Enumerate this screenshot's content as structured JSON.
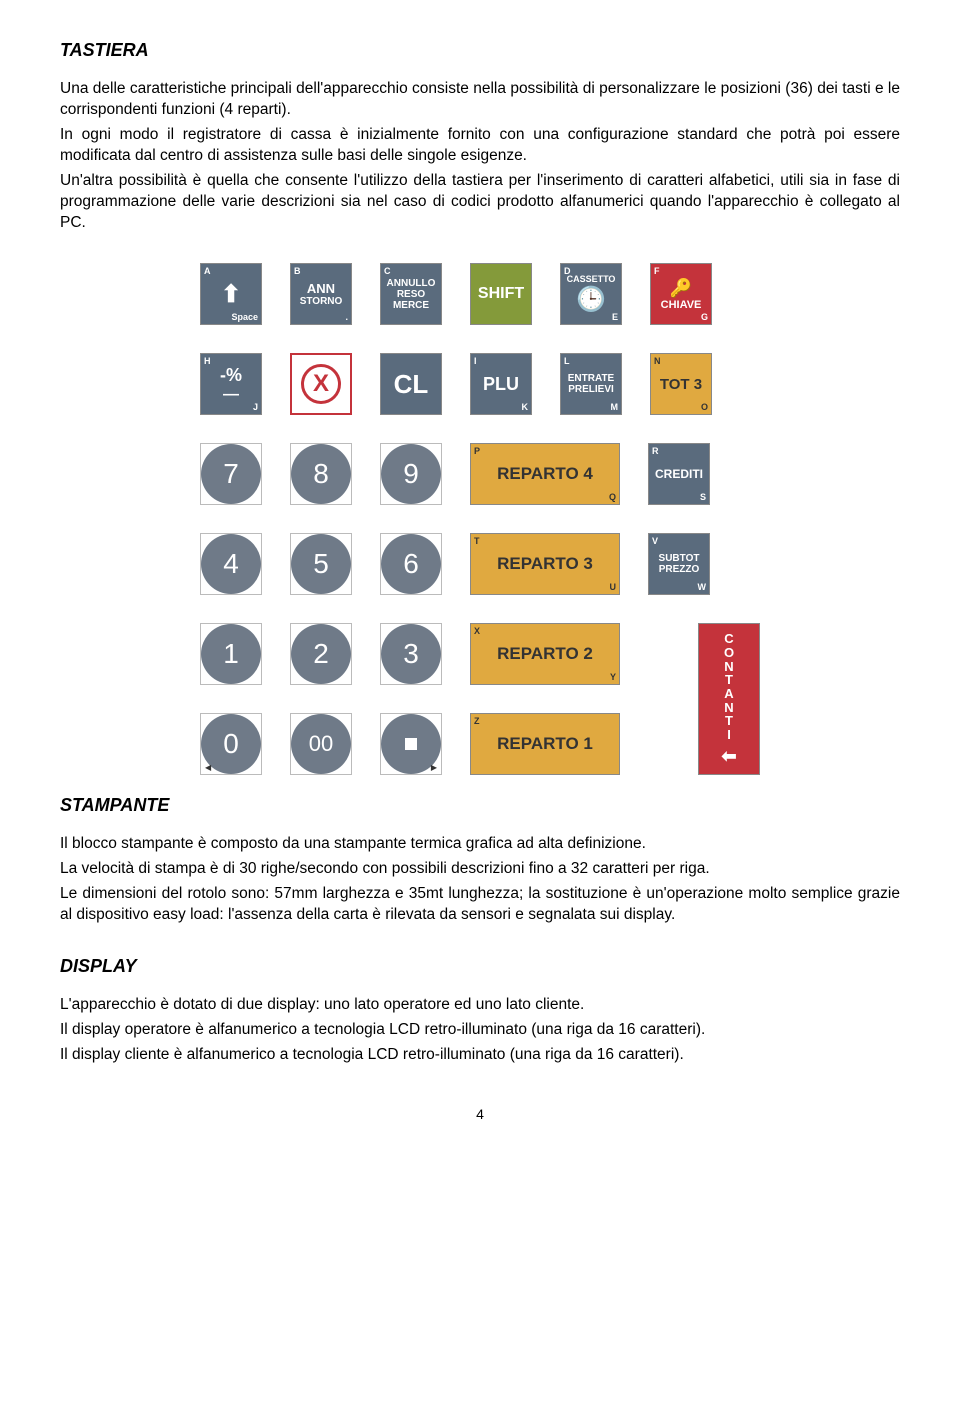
{
  "section1": {
    "title": "TASTIERA",
    "p1": "Una delle caratteristiche principali dell'apparecchio consiste nella possibilità di personalizzare le posizioni (36) dei tasti e le corrispondenti funzioni (4 reparti).",
    "p2": "In ogni modo il registratore di cassa è inizialmente fornito con una configurazione standard che potrà poi essere modificata dal centro di assistenza sulle basi delle singole esigenze.",
    "p3": "Un'altra possibilità è quella che consente l'utilizzo della tastiera per l'inserimento di caratteri alfabetici, utili sia in fase di programmazione delle varie descrizioni sia nel caso di codici prodotto alfanumerici quando l'apparecchio è collegato al PC."
  },
  "section2": {
    "title": "STAMPANTE",
    "p1": "Il blocco stampante è composto da una stampante termica grafica ad alta definizione.",
    "p2": "La velocità di stampa è di 30 righe/secondo con possibili descrizioni fino a 32 caratteri per riga.",
    "p3": "Le dimensioni del rotolo sono: 57mm larghezza e 35mt lunghezza; la sostituzione è un'operazione molto semplice grazie al dispositivo easy load: l'assenza della carta è rilevata da sensori e segnalata sui display."
  },
  "section3": {
    "title": "DISPLAY",
    "p1": "L'apparecchio è dotato di due display: uno lato operatore ed uno lato cliente.",
    "p2": "Il display operatore è alfanumerico a tecnologia LCD retro-illuminato (una riga da 16 caratteri).",
    "p3": "Il display cliente è alfanumerico a tecnologia LCD retro-illuminato (una riga da 16 caratteri)."
  },
  "keys": {
    "row1": {
      "space": {
        "bgcolor": "#5a6b7d",
        "tl": "A",
        "br": "Space",
        "line1": "",
        "line2": ""
      },
      "storno": {
        "bgcolor": "#5a6b7d",
        "tl": "B",
        "br": ".",
        "line1": "ANN",
        "line2": "STORNO"
      },
      "annullo": {
        "bgcolor": "#5a6b7d",
        "tl": "C",
        "line1": "ANNULLO",
        "line2": "RESO MERCE"
      },
      "shift": {
        "bgcolor": "#849a3a",
        "line1": "SHIFT"
      },
      "cassetto": {
        "bgcolor": "#5a6b7d",
        "tl": "D",
        "br": "E",
        "line1": "CASSETTO"
      },
      "chiave": {
        "bgcolor": "#c4333b",
        "tl": "F",
        "br": "G",
        "line1": "CHIAVE"
      }
    },
    "row2": {
      "percent": {
        "bgcolor": "#5a6b7d",
        "tl": "H",
        "br": "J",
        "line1": "-%",
        "line2": "—"
      },
      "x": {
        "bgcolor": "#ffffff",
        "textcolor": "#c4333b",
        "line1": "X"
      },
      "cl": {
        "bgcolor": "#5a6b7d",
        "line1": "CL"
      },
      "plu": {
        "bgcolor": "#5a6b7d",
        "tl": "I",
        "br": "K",
        "line1": "PLU"
      },
      "entrate": {
        "bgcolor": "#5a6b7d",
        "tl": "L",
        "br": "M",
        "line1": "ENTRATE",
        "line2": "PRELIEVI"
      },
      "tot3": {
        "bgcolor": "#e0a940",
        "textcolor": "#333",
        "tl": "N",
        "br": "O",
        "line1": "TOT 3"
      }
    },
    "nums": {
      "n7": "7",
      "n8": "8",
      "n9": "9",
      "n4": "4",
      "n5": "5",
      "n6": "6",
      "n1": "1",
      "n2": "2",
      "n3": "3",
      "n0": "0",
      "n00": "00",
      "dot": "."
    },
    "row3": {
      "reparto4": {
        "bgcolor": "#e0a940",
        "textcolor": "#333",
        "tl": "P",
        "br": "Q",
        "line1": "REPARTO 4"
      },
      "crediti": {
        "bgcolor": "#5a6b7d",
        "tl": "R",
        "br": "S",
        "line1": "CREDITI"
      }
    },
    "row4": {
      "reparto3": {
        "bgcolor": "#e0a940",
        "textcolor": "#333",
        "tl": "T",
        "br": "U",
        "line1": "REPARTO 3"
      },
      "subtot": {
        "bgcolor": "#5a6b7d",
        "tl": "V",
        "br": "W",
        "line1": "SUBTOT",
        "line2": "PREZZO"
      }
    },
    "row5": {
      "reparto2": {
        "bgcolor": "#e0a940",
        "textcolor": "#333",
        "tl": "X",
        "br": "Y",
        "line1": "REPARTO 2"
      },
      "contanti": {
        "bgcolor": "#c4333b",
        "line1": "CONTANTI"
      }
    },
    "row6": {
      "reparto1": {
        "bgcolor": "#e0a940",
        "textcolor": "#333",
        "tl": "Z",
        "line1": "REPARTO 1"
      }
    }
  },
  "pageNumber": "4"
}
